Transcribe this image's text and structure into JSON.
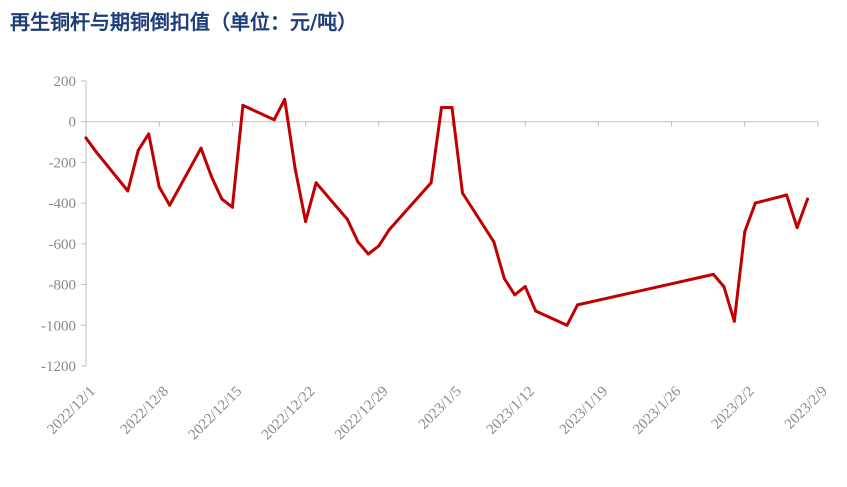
{
  "chart_data": {
    "type": "line",
    "title": "再生铜杆与期铜倒扣值（单位：元/吨）",
    "xlabel": "",
    "ylabel": "",
    "ylim": [
      -1200,
      200
    ],
    "yticks": [
      200,
      0,
      -200,
      -400,
      -600,
      -800,
      -1000,
      -1200
    ],
    "xlim": [
      "2022-12-01",
      "2023-02-09"
    ],
    "xtick_labels": [
      "2022/12/1",
      "2022/12/8",
      "2022/12/15",
      "2022/12/22",
      "2022/12/29",
      "2023/1/5",
      "2023/1/12",
      "2023/1/19",
      "2023/1/26",
      "2023/2/2",
      "2023/2/9"
    ],
    "grid": false,
    "legend": "none",
    "line_color": "#c00000",
    "series": [
      {
        "x": [
          "2022-12-01",
          "2022-12-02",
          "2022-12-05",
          "2022-12-06",
          "2022-12-07",
          "2022-12-08",
          "2022-12-09",
          "2022-12-12",
          "2022-12-13",
          "2022-12-14",
          "2022-12-15",
          "2022-12-16",
          "2022-12-19",
          "2022-12-20",
          "2022-12-21",
          "2022-12-22",
          "2022-12-23",
          "2022-12-26",
          "2022-12-27",
          "2022-12-28",
          "2022-12-29",
          "2022-12-30",
          "2023-01-03",
          "2023-01-04",
          "2023-01-05",
          "2023-01-06",
          "2023-01-09",
          "2023-01-10",
          "2023-01-11",
          "2023-01-12",
          "2023-01-13",
          "2023-01-16",
          "2023-01-17",
          "2023-01-30",
          "2023-01-31",
          "2023-02-01",
          "2023-02-02",
          "2023-02-03",
          "2023-02-06",
          "2023-02-07",
          "2023-02-08"
        ],
        "values": [
          -80,
          -150,
          -340,
          -140,
          -60,
          -320,
          -410,
          -130,
          -270,
          -380,
          -420,
          80,
          10,
          110,
          -230,
          -490,
          -300,
          -480,
          -590,
          -650,
          -610,
          -530,
          -300,
          70,
          70,
          -350,
          -590,
          -770,
          -850,
          -810,
          -930,
          -1000,
          -900,
          -750,
          -810,
          -980,
          -540,
          -400,
          -360,
          -520,
          -380
        ]
      }
    ]
  }
}
